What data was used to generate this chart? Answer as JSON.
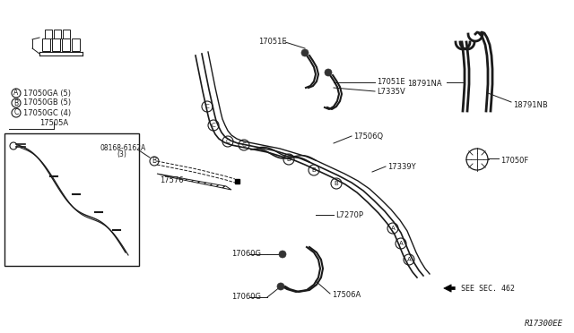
{
  "bg_color": "#ffffff",
  "diagram_code": "R17300EE",
  "labels": {
    "17060G_top": "17060G",
    "17506A": "17506A",
    "17060G_bot": "17060G",
    "17270P": "L7270P",
    "17339Y": "17339Y",
    "17506Q": "17506Q",
    "17051E_top": "17051E",
    "17335V": "L7335V",
    "17051E_bot": "17051E",
    "17576": "17576",
    "08168": "08168-6162A",
    "qty3": "(3)",
    "17505A": "17505A",
    "17050GA": "17050GA (5)",
    "17050GB": "17050GB (5)",
    "17050GC": "17050GC (4)",
    "see_sec": "SEE SEC. 462",
    "17050F": "17050F",
    "18791NA": "18791NA",
    "18791NB": "18791NB"
  },
  "line_color": "#1a1a1a",
  "text_color": "#1a1a1a",
  "font_size": 6.0
}
